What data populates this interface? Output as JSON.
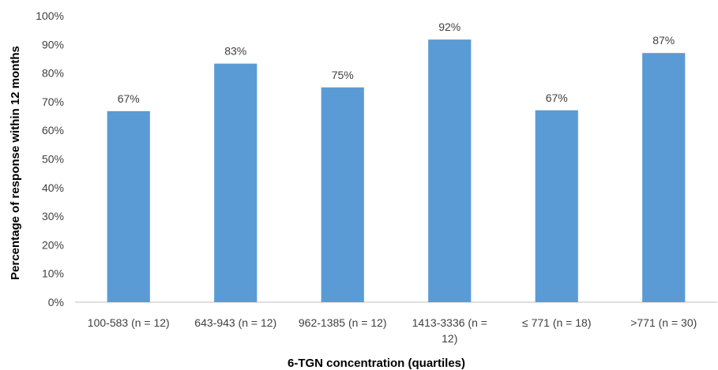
{
  "chart_data": {
    "type": "bar",
    "title": "",
    "xlabel": "6-TGN concentration (quartiles)",
    "ylabel": "Percentage of response within 12 months",
    "categories": [
      [
        "100-583 (n = 12)"
      ],
      [
        "643-943 (n = 12)"
      ],
      [
        "962-1385 (n = 12)"
      ],
      [
        "1413-3336 (n =",
        "12)"
      ],
      [
        "≤ 771 (n = 18)"
      ],
      [
        ">771 (n = 30)"
      ]
    ],
    "values": [
      66.7,
      83.3,
      75,
      91.7,
      67,
      87
    ],
    "data_labels": [
      "67%",
      "83%",
      "75%",
      "92%",
      "67%",
      "87%"
    ],
    "ylim": [
      0,
      100
    ],
    "yticks": [
      "0%",
      "10%",
      "20%",
      "30%",
      "40%",
      "50%",
      "60%",
      "70%",
      "80%",
      "90%",
      "100%"
    ],
    "grid": false,
    "legend": "none",
    "bar_color": "#5b9bd5"
  }
}
